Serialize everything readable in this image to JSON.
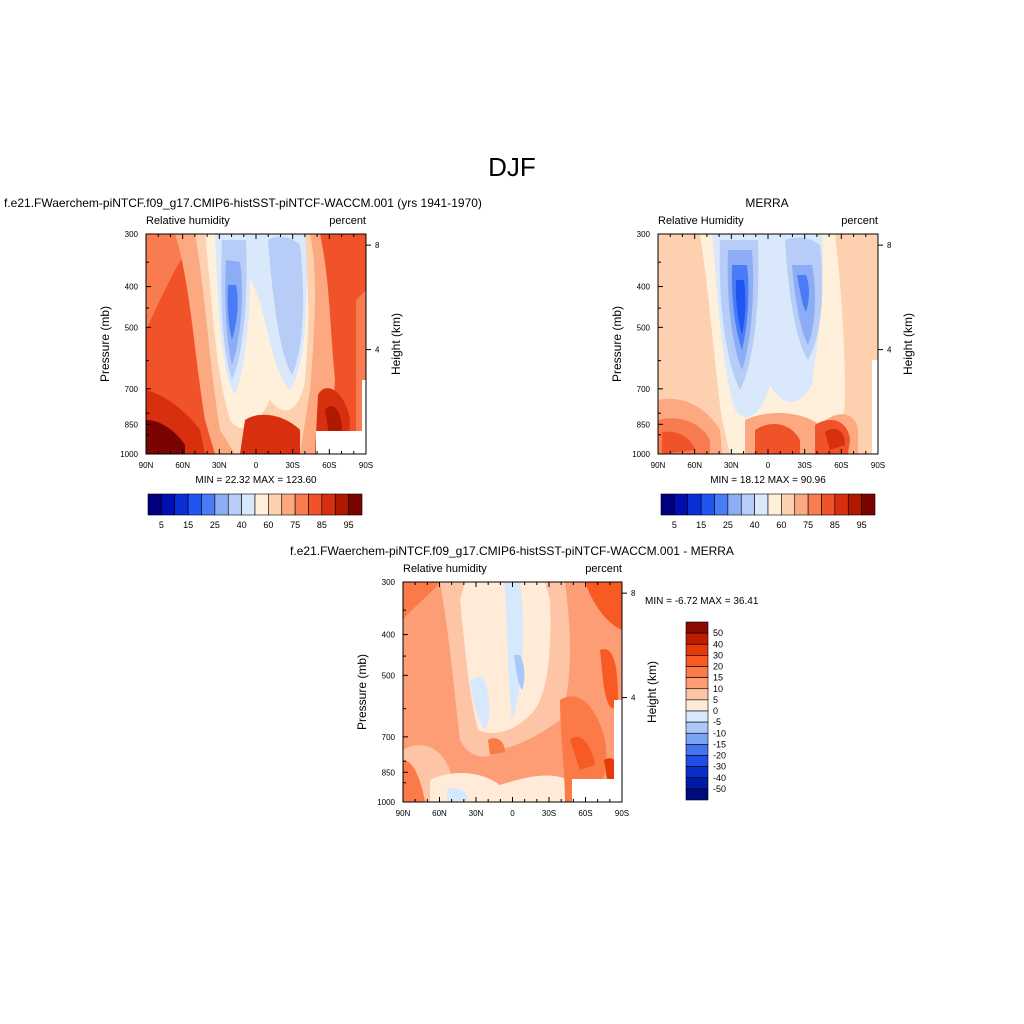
{
  "title": "DJF",
  "panels": {
    "model": {
      "title": "f.e21.FWaerchem-piNTCF.f09_g17.CMIP6-histSST-piNTCF-WACCM.001 (yrs 1941-1970)",
      "var_label": "Relative humidity",
      "units_label": "percent",
      "minmax": "MIN =  22.32  MAX = 123.60"
    },
    "obs": {
      "title": "MERRA",
      "var_label": "Relative Humidity",
      "units_label": "percent",
      "minmax": "MIN =  18.12  MAX =  90.96"
    },
    "diff": {
      "title": "f.e21.FWaerchem-piNTCF.f09_g17.CMIP6-histSST-piNTCF-WACCM.001 - MERRA",
      "var_label": "Relative humidity",
      "units_label": "percent",
      "minmax": "MIN =  -6.72  MAX =  36.41"
    }
  },
  "axes": {
    "pressure_label": "Pressure (mb)",
    "height_label": "Height (km)",
    "pressure_ticks": [
      "300",
      "400",
      "500",
      "700",
      "850",
      "1000"
    ],
    "height_ticks": [
      "8",
      "4"
    ],
    "lat_ticks": [
      "90N",
      "60N",
      "30N",
      "0",
      "30S",
      "60S",
      "90S"
    ]
  },
  "colorbars": {
    "abs_labels": [
      "5",
      "15",
      "25",
      "40",
      "60",
      "75",
      "85",
      "95"
    ],
    "abs_colors": [
      "#00007f",
      "#0010b0",
      "#0a2ed8",
      "#1f55f0",
      "#4a7df5",
      "#8cadf5",
      "#b7cdf7",
      "#d9e8fb",
      "#fff0dc",
      "#fdd0b0",
      "#fca880",
      "#f97c50",
      "#f0522a",
      "#d8300e",
      "#b01800",
      "#7a0400"
    ],
    "diff_labels": [
      "50",
      "40",
      "30",
      "20",
      "15",
      "10",
      "5",
      "0",
      "-5",
      "-10",
      "-15",
      "-20",
      "-30",
      "-40",
      "-50"
    ],
    "diff_colors": [
      "#8c0a00",
      "#c01d00",
      "#e63a06",
      "#f75a22",
      "#fa7a48",
      "#fc9d75",
      "#fdc4a6",
      "#ffebd8",
      "#d6e8fc",
      "#a9c8f7",
      "#7aa3f4",
      "#4474f0",
      "#1f4ee6",
      "#0a2cc8",
      "#0019a4",
      "#000a7c"
    ]
  },
  "chart_data": [
    {
      "type": "heatmap",
      "title": "f.e21.FWaerchem-piNTCF.f09_g17.CMIP6-histSST-piNTCF-WACCM.001 (yrs 1941-1970)",
      "variable": "Relative humidity",
      "units": "percent",
      "xlabel": "",
      "ylabel": "Pressure (mb)",
      "y2label": "Height (km)",
      "x_ticks": [
        "90N",
        "60N",
        "30N",
        "0",
        "30S",
        "60S",
        "90S"
      ],
      "xlim": [
        90,
        -90
      ],
      "ylim": [
        1000,
        300
      ],
      "min": 22.32,
      "max": 123.6,
      "levels": [
        5,
        10,
        15,
        20,
        25,
        30,
        40,
        50,
        60,
        70,
        75,
        80,
        85,
        90,
        95
      ]
    },
    {
      "type": "heatmap",
      "title": "MERRA",
      "variable": "Relative Humidity",
      "units": "percent",
      "xlabel": "",
      "ylabel": "Pressure (mb)",
      "y2label": "Height (km)",
      "x_ticks": [
        "90N",
        "60N",
        "30N",
        "0",
        "30S",
        "60S",
        "90S"
      ],
      "xlim": [
        90,
        -90
      ],
      "ylim": [
        1000,
        300
      ],
      "min": 18.12,
      "max": 90.96,
      "levels": [
        5,
        10,
        15,
        20,
        25,
        30,
        40,
        50,
        60,
        70,
        75,
        80,
        85,
        90,
        95
      ]
    },
    {
      "type": "heatmap",
      "title": "f.e21.FWaerchem-piNTCF.f09_g17.CMIP6-histSST-piNTCF-WACCM.001 - MERRA",
      "variable": "Relative humidity",
      "units": "percent",
      "xlabel": "",
      "ylabel": "Pressure (mb)",
      "y2label": "Height (km)",
      "x_ticks": [
        "90N",
        "60N",
        "30N",
        "0",
        "30S",
        "60S",
        "90S"
      ],
      "xlim": [
        90,
        -90
      ],
      "ylim": [
        1000,
        300
      ],
      "min": -6.72,
      "max": 36.41,
      "levels": [
        -50,
        -40,
        -30,
        -20,
        -15,
        -10,
        -5,
        0,
        5,
        10,
        15,
        20,
        30,
        40,
        50
      ]
    }
  ]
}
